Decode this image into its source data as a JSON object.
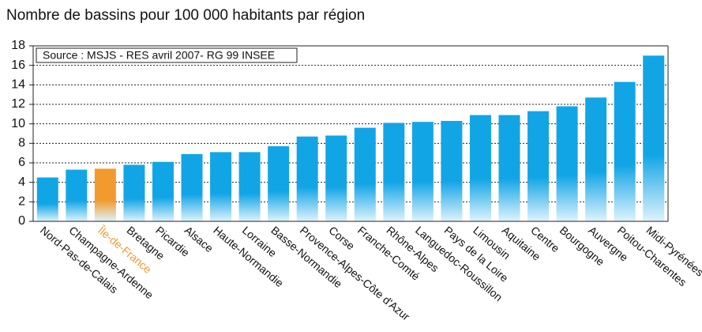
{
  "chart_data": {
    "type": "bar",
    "title": "Nombre de bassins pour 100 000 habitants par région",
    "annotation": "Source : MSJS - RES avril 2007- RG 99  INSEE",
    "categories": [
      "Nord-Pas-de-Calais",
      "Champagne-Ardenne",
      "Île-de-France",
      "Bretagne",
      "Picardie",
      "Alsace",
      "Haute-Normandie",
      "Lorraine",
      "Basse-Normandie",
      "Provence-Alpes-Côte d'Azur",
      "Corse",
      "Franche-Comté",
      "Rhône-Alpes",
      "Languedoc-Roussillon",
      "Pays de la Loire",
      "Limousin",
      "Aquitaine",
      "Centre",
      "Bourgogne",
      "Auvergne",
      "Poitou-Charentes",
      "Midi-Pyrénées"
    ],
    "values": [
      4.5,
      5.3,
      5.4,
      5.8,
      6.1,
      6.9,
      7.1,
      7.1,
      7.7,
      8.7,
      8.8,
      9.6,
      10.1,
      10.2,
      10.3,
      10.9,
      10.9,
      11.3,
      11.8,
      12.7,
      14.3,
      17.0
    ],
    "colors": [
      "#12a5e6",
      "#12a5e6",
      "#f39a2e",
      "#12a5e6",
      "#12a5e6",
      "#12a5e6",
      "#12a5e6",
      "#12a5e6",
      "#12a5e6",
      "#12a5e6",
      "#12a5e6",
      "#12a5e6",
      "#12a5e6",
      "#12a5e6",
      "#12a5e6",
      "#12a5e6",
      "#12a5e6",
      "#12a5e6",
      "#12a5e6",
      "#12a5e6",
      "#12a5e6",
      "#12a5e6"
    ],
    "ylim": [
      0,
      18
    ],
    "yticks": [
      0,
      2,
      4,
      6,
      8,
      10,
      12,
      14,
      16,
      18
    ],
    "grid": true
  }
}
